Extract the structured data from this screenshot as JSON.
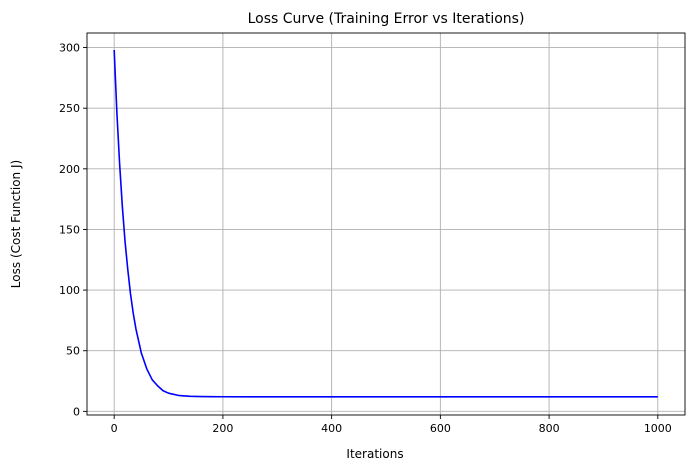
{
  "chart_data": {
    "type": "line",
    "title": "Loss Curve (Training Error vs Iterations)",
    "xlabel": "Iterations",
    "ylabel": "Loss (Cost Function J)",
    "xlim": [
      -50,
      1050
    ],
    "ylim": [
      -3,
      312
    ],
    "xticks": [
      0,
      200,
      400,
      600,
      800,
      1000
    ],
    "yticks": [
      0,
      50,
      100,
      150,
      200,
      250,
      300
    ],
    "grid": true,
    "series": [
      {
        "color": "#0000ff",
        "x": [
          0,
          5,
          10,
          15,
          20,
          25,
          30,
          35,
          40,
          50,
          60,
          70,
          80,
          90,
          100,
          120,
          140,
          160,
          180,
          200,
          250,
          300,
          400,
          500,
          600,
          700,
          800,
          900,
          1000
        ],
        "y": [
          298,
          246,
          204,
          169,
          140,
          117,
          97,
          81,
          68,
          48,
          35,
          26,
          21,
          17,
          15,
          13,
          12.4,
          12.2,
          12.1,
          12.05,
          12,
          12,
          12,
          12,
          12,
          12,
          12,
          12,
          12
        ]
      }
    ]
  }
}
